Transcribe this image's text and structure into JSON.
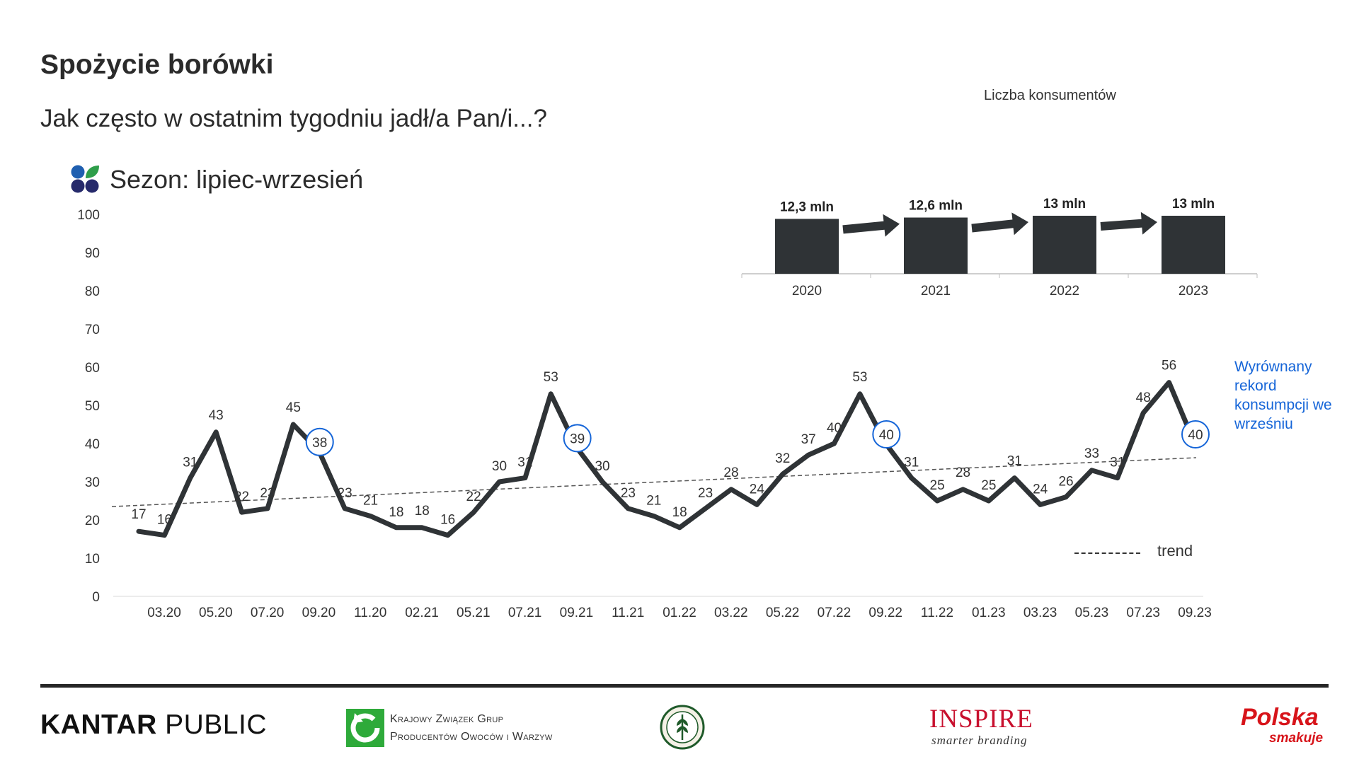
{
  "header": {
    "title": "Spożycie borówki",
    "subtitle": "Jak często w ostatnim tygodniu jadł/a Pan/i...?",
    "season_label": "Sezon: lipiec-wrzesień"
  },
  "chart_data": [
    {
      "type": "line",
      "title": "Sezon: lipiec-wrzesień",
      "xlabel": "",
      "ylabel": "",
      "ylim": [
        0,
        100
      ],
      "yticks": [
        0,
        10,
        20,
        30,
        40,
        50,
        60,
        70,
        80,
        90,
        100
      ],
      "x_tick_labels": [
        "03.20",
        "05.20",
        "07.20",
        "09.20",
        "11.20",
        "02.21",
        "05.21",
        "07.21",
        "09.21",
        "11.21",
        "01.22",
        "03.22",
        "05.22",
        "07.22",
        "09.22",
        "11.22",
        "01.23",
        "03.23",
        "05.23",
        "07.23",
        "09.23"
      ],
      "series": [
        {
          "name": "Spożycie borówki",
          "values": [
            17,
            16,
            31,
            43,
            22,
            23,
            45,
            38,
            23,
            21,
            18,
            18,
            16,
            22,
            30,
            31,
            53,
            39,
            30,
            23,
            21,
            18,
            23,
            28,
            24,
            32,
            37,
            40,
            53,
            40,
            31,
            25,
            28,
            25,
            31,
            24,
            26,
            33,
            31,
            48,
            56,
            40
          ]
        }
      ],
      "highlighted_points": [
        {
          "index": 7,
          "value": 38
        },
        {
          "index": 17,
          "value": 39
        },
        {
          "index": 29,
          "value": 40
        },
        {
          "index": 41,
          "value": 40
        }
      ],
      "trend": {
        "name": "trend",
        "start": 23.5,
        "end": 36.3
      },
      "annotation": "Wyrównany rekord konsumpcji we wrześniu",
      "legend": [
        {
          "name": "trend",
          "style": "dashed"
        }
      ]
    },
    {
      "type": "bar",
      "title": "Liczba konsumentów",
      "categories": [
        "2020",
        "2021",
        "2022",
        "2023"
      ],
      "values": [
        12.3,
        12.6,
        13,
        13
      ],
      "data_labels": [
        "12,3 mln",
        "12,6 mln",
        "13 mln",
        "13 mln"
      ],
      "unit": "mln"
    }
  ],
  "footer": {
    "kantar_bold": "KANTAR",
    "kantar_light": "PUBLIC",
    "kzgp_line1": "Krajowy Związek Grup",
    "kzgp_line2": "Producentów Owoców i Warzyw",
    "inspire": "INSPIRE",
    "inspire_sub": "smarter branding",
    "polska": "Polska",
    "smakuje": "smakuje"
  },
  "colors": {
    "line": "#2f3336",
    "bar": "#2f3336",
    "highlight": "#1565d8",
    "annotation": "#1565d8",
    "brand_red": "#d7141a",
    "kzgp_green": "#2eaa3a",
    "icon_green": "#2e9e4a",
    "icon_blue": "#1f5fb0",
    "icon_navy": "#262a6b"
  }
}
